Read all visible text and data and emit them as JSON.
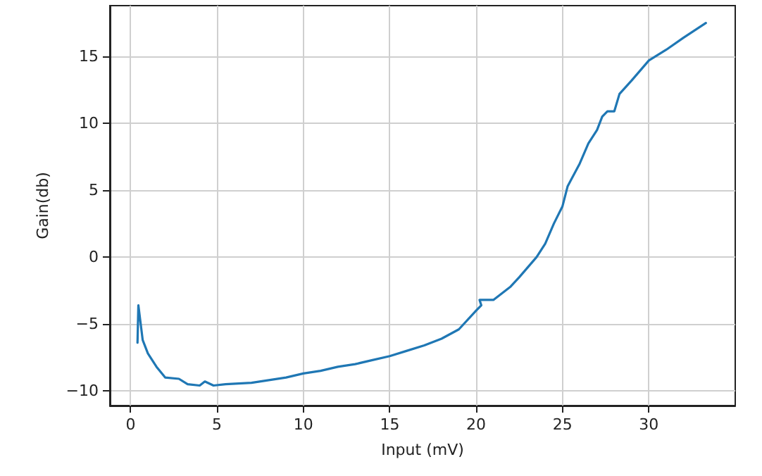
{
  "chart_data": {
    "type": "line",
    "xlabel": "Input (mV)",
    "ylabel": "Gain(db)",
    "series": [
      {
        "color": "#1f77b4",
        "x": [
          0.4,
          0.45,
          0.7,
          1.0,
          1.5,
          2.0,
          2.8,
          3.3,
          4.0,
          4.3,
          4.8,
          5.5,
          7,
          8,
          9,
          10,
          11,
          12,
          13,
          14,
          15,
          16,
          17,
          18,
          19,
          20,
          20.3,
          20.2,
          21,
          22,
          22.5,
          23.5,
          24,
          24.5,
          25,
          25.3,
          26,
          26.5,
          27,
          27.3,
          27.6,
          28,
          28.3,
          29,
          30,
          31,
          32,
          33.3
        ],
        "values": [
          -6.4,
          -3.6,
          -6.2,
          -7.2,
          -8.2,
          -9.0,
          -9.1,
          -9.5,
          -9.6,
          -9.3,
          -9.6,
          -9.5,
          -9.4,
          -9.2,
          -9.0,
          -8.7,
          -8.5,
          -8.2,
          -8.0,
          -7.7,
          -7.4,
          -7.0,
          -6.6,
          -6.1,
          -5.4,
          -4.0,
          -3.6,
          -3.2,
          -3.2,
          -2.2,
          -1.5,
          0,
          1,
          2.5,
          3.8,
          5.3,
          7,
          8.5,
          9.5,
          10.5,
          10.9,
          10.9,
          12.2,
          13.2,
          14.7,
          15.5,
          16.4,
          17.5
        ]
      }
    ],
    "xlim": [
      -1.2,
      35
    ],
    "xticks": [
      0,
      5,
      10,
      15,
      20,
      25,
      30
    ],
    "ylim": [
      -11.1,
      18.8
    ],
    "yticks": [
      -10,
      -5,
      0,
      5,
      10,
      15
    ],
    "grid": true,
    "marker": "none",
    "line_style": "solid"
  }
}
